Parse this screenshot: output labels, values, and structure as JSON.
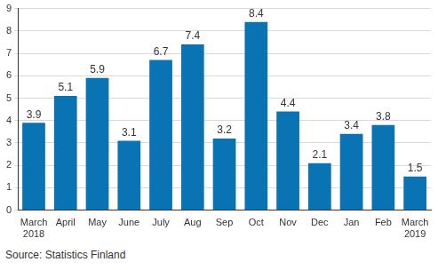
{
  "chart_data": {
    "type": "bar",
    "categories": [
      [
        "March",
        "2018"
      ],
      "April",
      "May",
      "June",
      "July",
      "Aug",
      "Sep",
      "Oct",
      "Nov",
      "Dec",
      "Jan",
      "Feb",
      [
        "March",
        "2019"
      ]
    ],
    "values": [
      3.9,
      5.1,
      5.9,
      3.1,
      6.7,
      7.4,
      3.2,
      8.4,
      4.4,
      2.1,
      3.4,
      3.8,
      1.5
    ],
    "color": "#0a73b4",
    "ylim": [
      0,
      9
    ],
    "yticks": [
      0,
      1,
      2,
      3,
      4,
      5,
      6,
      7,
      8,
      9
    ],
    "grid": true,
    "data_labels": true,
    "source": "Source: Statistics Finland"
  }
}
